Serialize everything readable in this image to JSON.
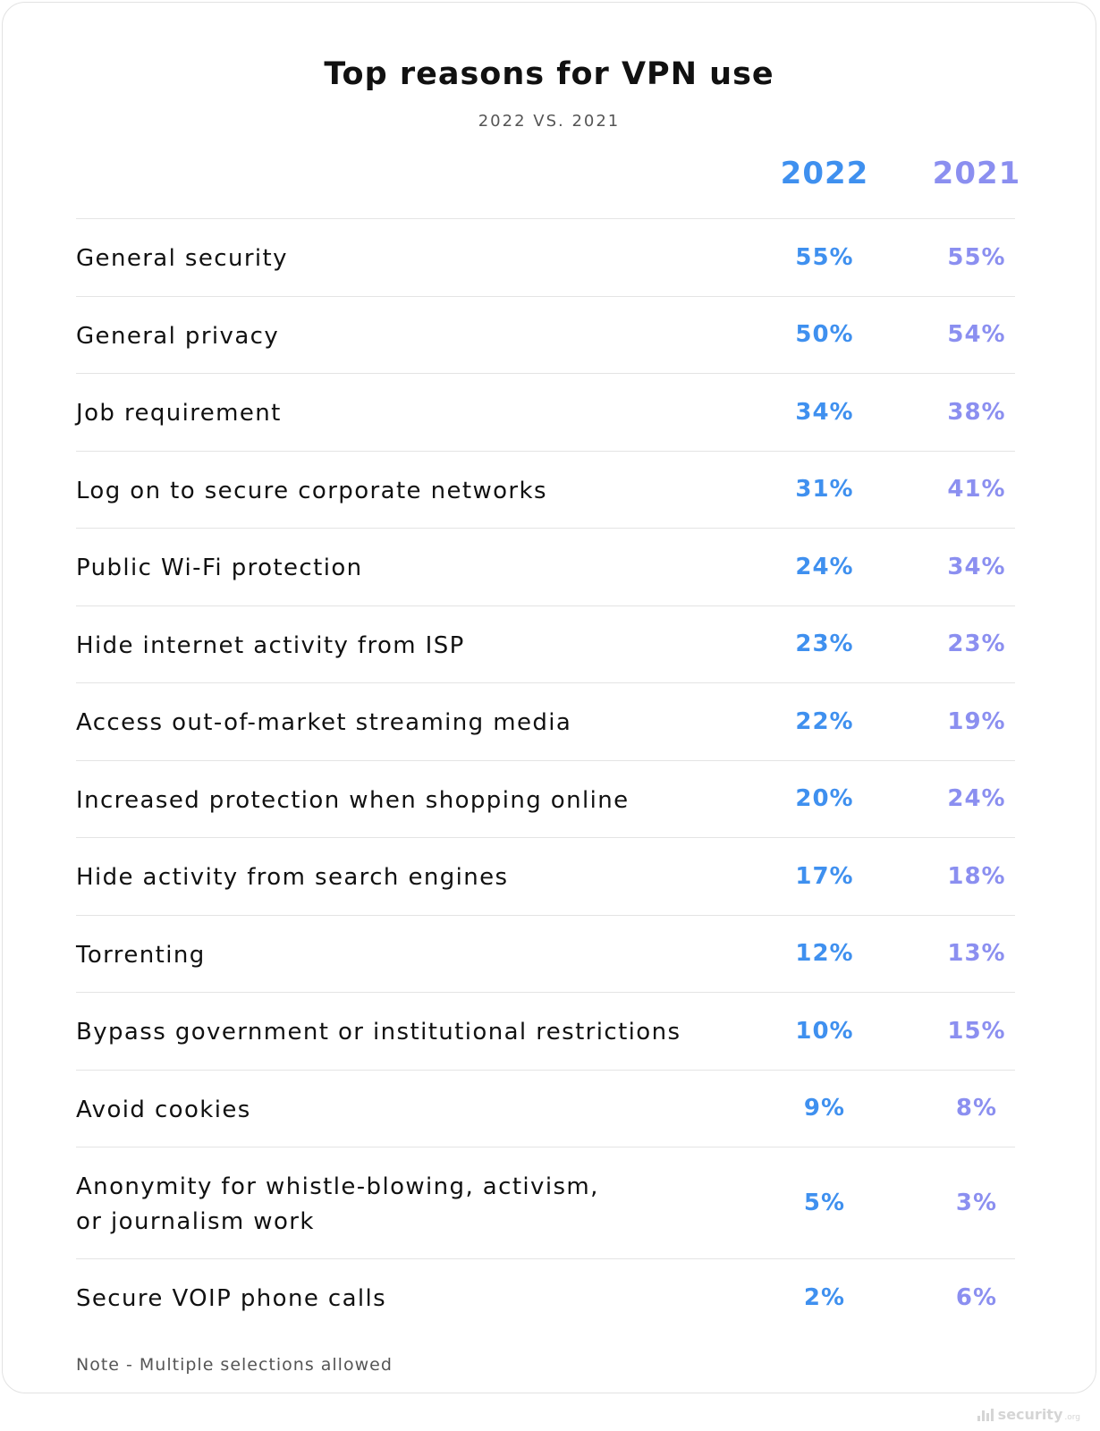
{
  "chart_data": {
    "type": "table",
    "title": "Top reasons for VPN use",
    "subtitle": "2022 VS. 2021",
    "columns": [
      "2022",
      "2021"
    ],
    "series_colors": {
      "2022": "#3f90ef",
      "2021": "#8b8ff0"
    },
    "rows": [
      {
        "label": "General security",
        "v2022": "55%",
        "v2021": "55%"
      },
      {
        "label": "General privacy",
        "v2022": "50%",
        "v2021": "54%"
      },
      {
        "label": "Job requirement",
        "v2022": "34%",
        "v2021": "38%"
      },
      {
        "label": "Log on to secure corporate networks",
        "v2022": "31%",
        "v2021": "41%"
      },
      {
        "label": "Public Wi-Fi protection",
        "v2022": "24%",
        "v2021": "34%"
      },
      {
        "label": "Hide internet activity from ISP",
        "v2022": "23%",
        "v2021": "23%"
      },
      {
        "label": "Access out-of-market streaming media",
        "v2022": "22%",
        "v2021": "19%"
      },
      {
        "label": "Increased protection when shopping online",
        "v2022": "20%",
        "v2021": "24%"
      },
      {
        "label": "Hide activity from search engines",
        "v2022": "17%",
        "v2021": "18%"
      },
      {
        "label": "Torrenting",
        "v2022": "12%",
        "v2021": "13%"
      },
      {
        "label": "Bypass government or institutional restrictions",
        "v2022": "10%",
        "v2021": "15%"
      },
      {
        "label": "Avoid cookies",
        "v2022": "9%",
        "v2021": "8%"
      },
      {
        "label": "Anonymity for whistle-blowing, activism,\nor journalism work",
        "v2022": "5%",
        "v2021": "3%"
      },
      {
        "label": "Secure VOIP phone calls",
        "v2022": "2%",
        "v2021": "6%"
      }
    ],
    "note": "Note - Multiple selections allowed"
  },
  "watermark": {
    "text": "security",
    "tld": ".org"
  }
}
